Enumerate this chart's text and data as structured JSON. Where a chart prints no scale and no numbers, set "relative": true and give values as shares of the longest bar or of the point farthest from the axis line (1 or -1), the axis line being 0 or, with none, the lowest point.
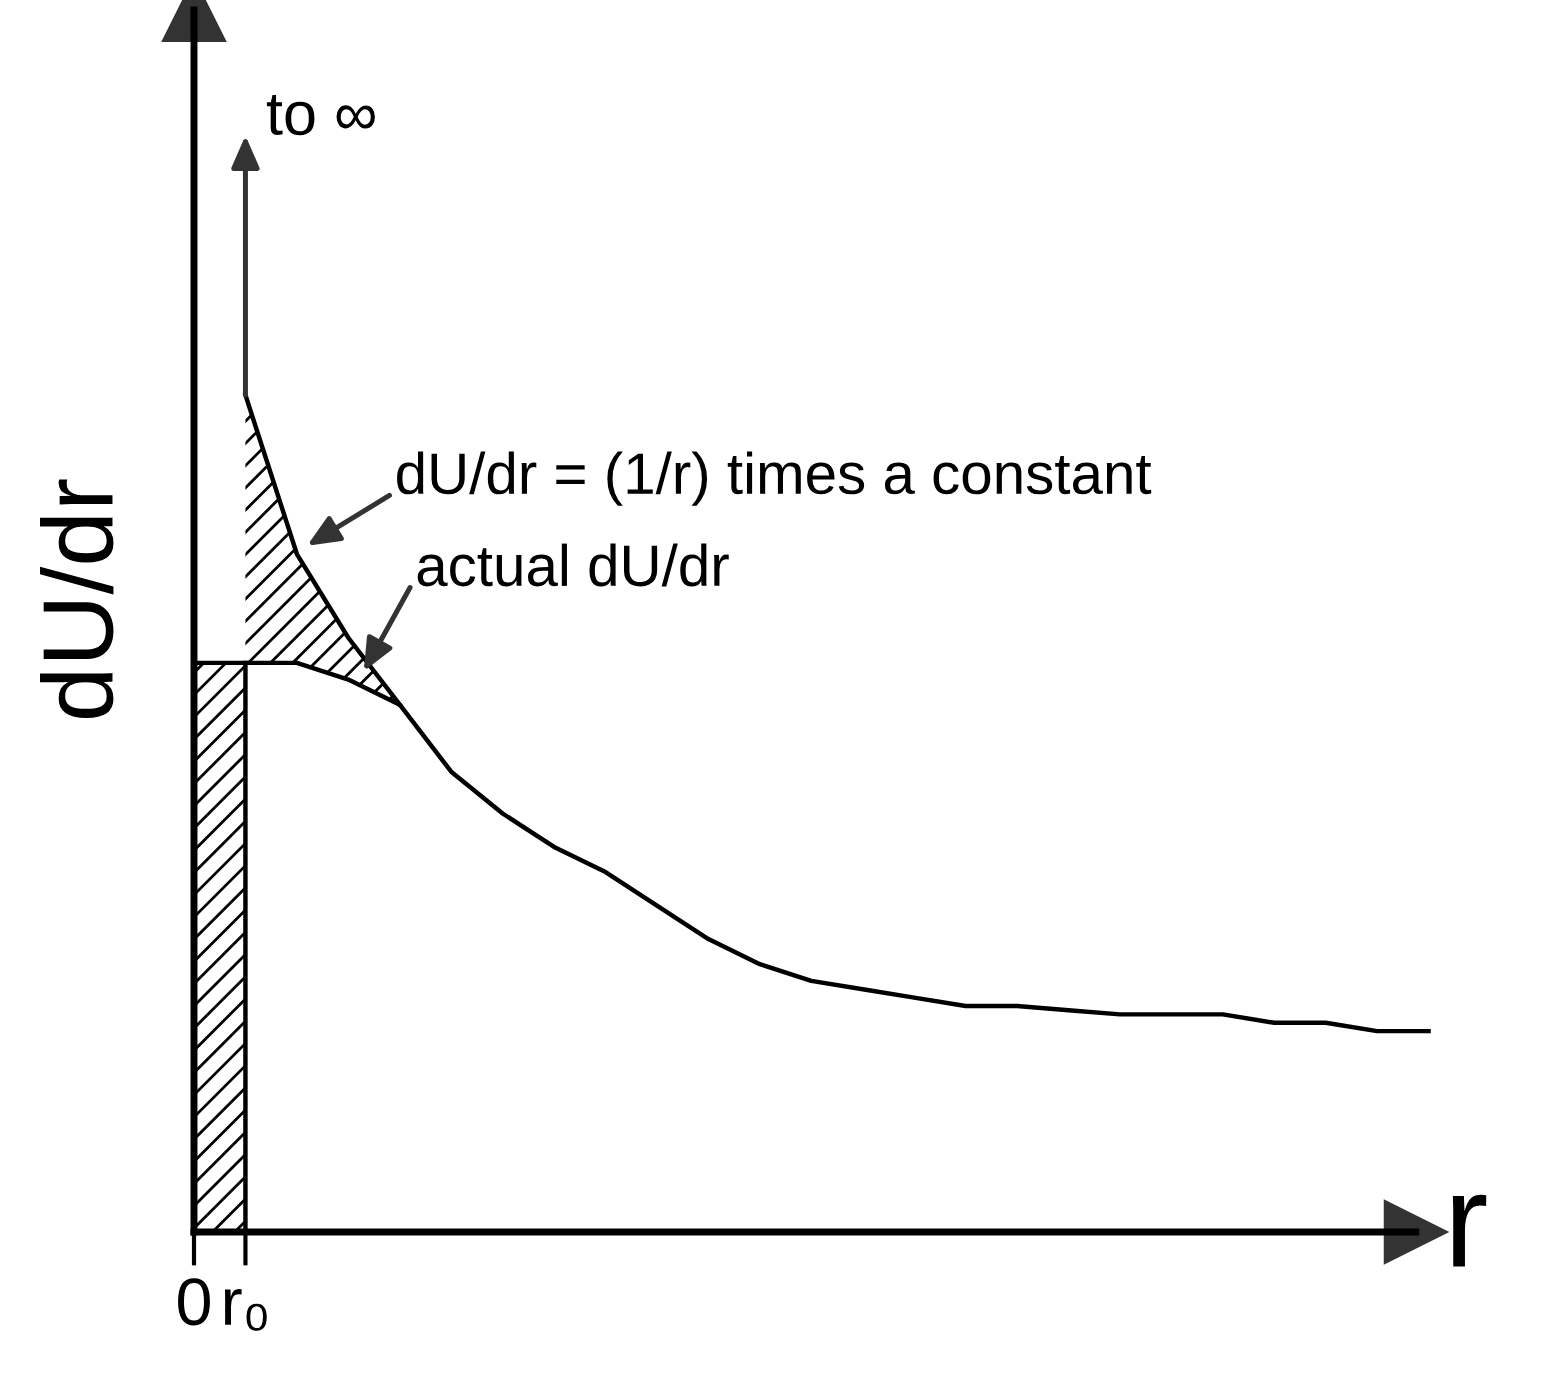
{
  "chart_data": {
    "type": "line",
    "relative": true,
    "xlabel": "r",
    "ylabel": "dU/dr",
    "categories": [
      "0",
      "r₀",
      null,
      null,
      null,
      null,
      null,
      null,
      null,
      null,
      null,
      null,
      null,
      null,
      null,
      null,
      null,
      null,
      null,
      null,
      null,
      null,
      null,
      null,
      null
    ],
    "series": [
      {
        "type": "area",
        "color": "#000000",
        "values": [
          0.68,
          0.68,
          null,
          null,
          null,
          null,
          null,
          null,
          null,
          null,
          null,
          null,
          null,
          null,
          null,
          null,
          null,
          null,
          null,
          null,
          null,
          null,
          null,
          null,
          null
        ]
      },
      {
        "color": "#000000",
        "values": [
          null,
          1.0,
          0.81,
          0.71,
          0.63,
          null,
          null,
          null,
          null,
          null,
          null,
          null,
          null,
          null,
          null,
          null,
          null,
          null,
          null,
          null,
          null,
          null,
          null,
          null,
          null
        ],
        "lower": [
          null,
          0.68,
          0.68,
          0.66,
          0.63,
          null,
          null,
          null,
          null,
          null,
          null,
          null,
          null,
          null,
          null,
          null,
          null,
          null,
          null,
          null,
          null,
          null,
          null,
          null,
          null
        ],
        "upper": [
          null,
          1.0,
          0.81,
          0.71,
          0.63,
          null,
          null,
          null,
          null,
          null,
          null,
          null,
          null,
          null,
          null,
          null,
          null,
          null,
          null,
          null,
          null,
          null,
          null,
          null,
          null
        ]
      },
      {
        "color": "#000000",
        "values": [
          0.68,
          0.68,
          0.68,
          0.66,
          0.63,
          0.55,
          0.5,
          0.46,
          0.43,
          0.39,
          0.35,
          0.32,
          0.3,
          0.29,
          0.28,
          0.27,
          0.27,
          0.265,
          0.26,
          0.26,
          0.26,
          0.25,
          0.25,
          0.24,
          0.24
        ]
      }
    ],
    "annotations": [
      "to ∞",
      "dU/dr = (1/r) times a constant",
      "actual dU/dr"
    ],
    "grid": false,
    "legend": false
  }
}
